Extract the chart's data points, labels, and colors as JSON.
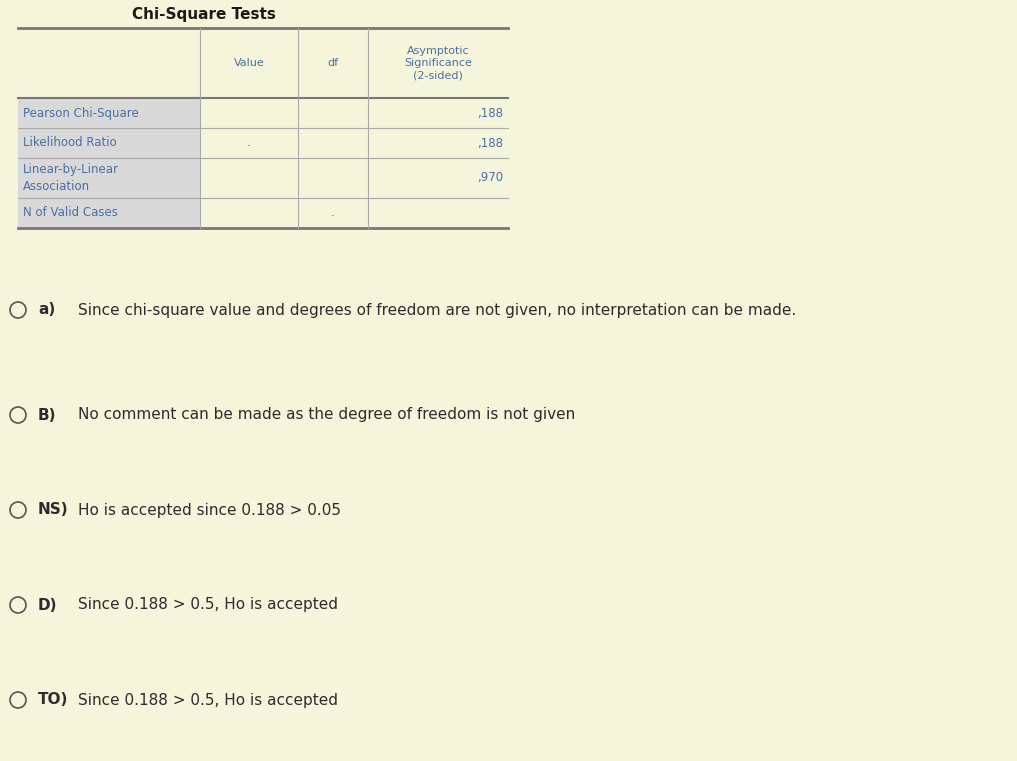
{
  "background_color": "#f5f5dc",
  "table_title": "Chi-Square Tests",
  "col_headers": [
    "",
    "Value",
    "df",
    "Asymptotic\nSignificance\n(2-sided)"
  ],
  "rows": [
    [
      "Pearson Chi-Square",
      "",
      "",
      ",188"
    ],
    [
      "Likelihood Ratio",
      ".",
      "",
      ",188"
    ],
    [
      "Linear-by-Linear\nAssociation",
      "",
      "",
      ",970"
    ],
    [
      "N of Valid Cases",
      "",
      ".",
      ""
    ]
  ],
  "cell_text_color": "#4a6fa5",
  "title_color": "#1a1a1a",
  "options": [
    {
      "label": "a)",
      "text": "Since chi-square value and degrees of freedom are not given, no interpretation can be made."
    },
    {
      "label": "B)",
      "text": "No comment can be made as the degree of freedom is not given"
    },
    {
      "label": "NS)",
      "text": "Ho is accepted since 0.188 > 0.05"
    },
    {
      "label": "D)",
      "text": "Since 0.188 > 0.5, Ho is accepted"
    },
    {
      "label": "TO)",
      "text": "Since 0.188 > 0.5, Ho is accepted"
    }
  ],
  "option_text_color": "#2c2c2c",
  "circle_color": "#555555"
}
